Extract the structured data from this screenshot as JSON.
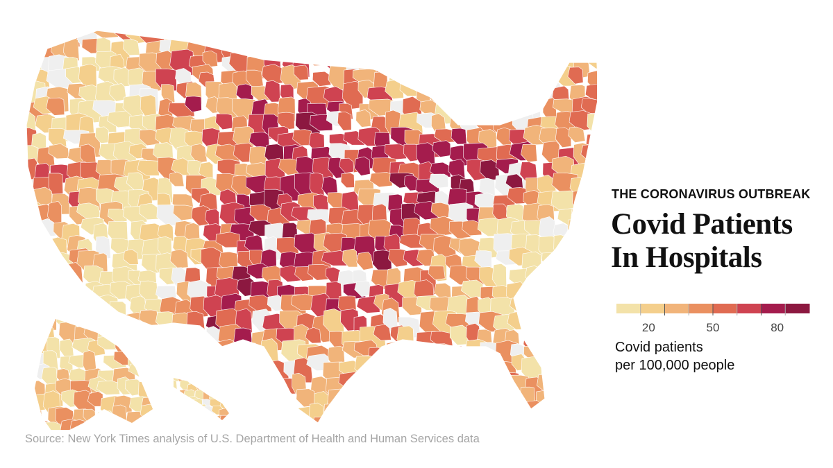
{
  "kicker": "THE CORONAVIRUS OUTBREAK",
  "headline": {
    "line1": "Covid Patients",
    "line2": "In Hospitals"
  },
  "legend": {
    "colors": [
      "#f3e2a9",
      "#f4cf8c",
      "#f1b47a",
      "#ea9060",
      "#e06b52",
      "#cf4351",
      "#a41c4d",
      "#8c1840"
    ],
    "ticks": [
      {
        "label": "20",
        "value": 20
      },
      {
        "label": "50",
        "value": 50
      },
      {
        "label": "80",
        "value": 80
      }
    ],
    "caption_line1": "Covid patients",
    "caption_line2": "per 100,000 people"
  },
  "map": {
    "no_data_color": "#efefef",
    "border_color": "#ffffff",
    "regions": [
      "contiguous-us",
      "alaska",
      "hawaii"
    ]
  },
  "source": "Source: New York Times analysis of U.S. Department of Health and Human Services data"
}
